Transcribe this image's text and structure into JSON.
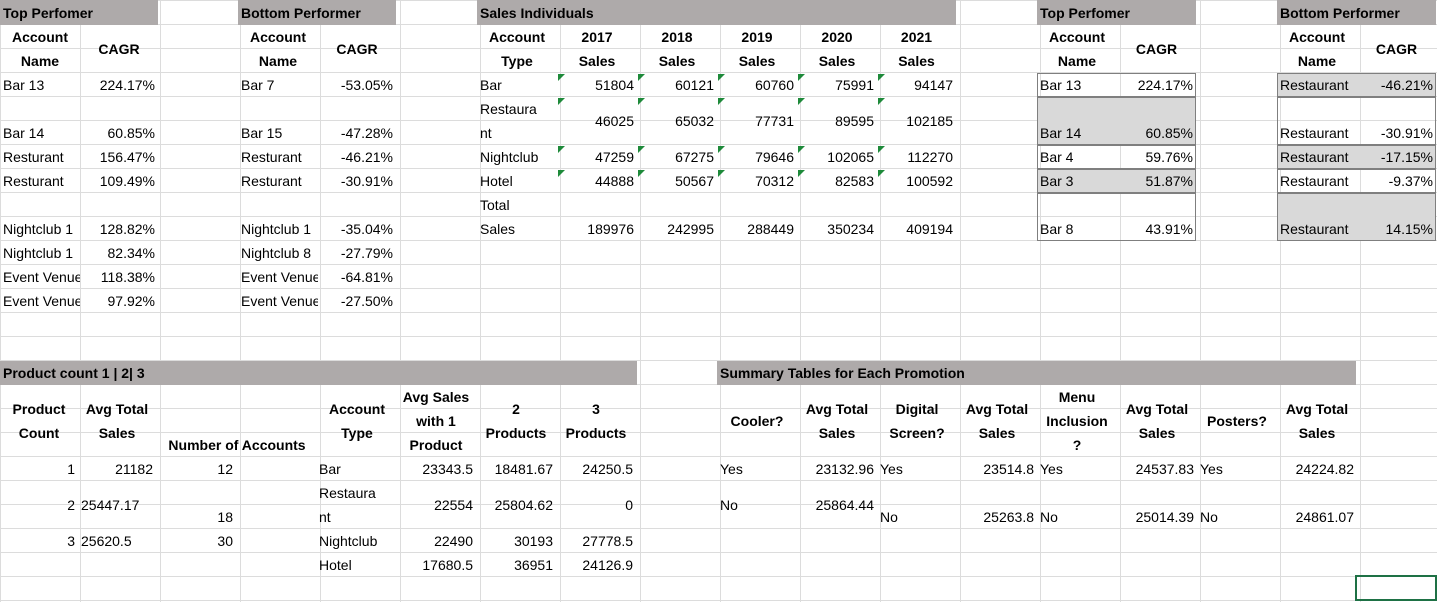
{
  "t1": {
    "title": "Top Perfomer",
    "h1a": "Account",
    "h1b": "Name",
    "h2": "CAGR",
    "rows": [
      [
        "Bar 13",
        "224.17%"
      ],
      [
        "Bar 14",
        "60.85%"
      ],
      [
        "Resturant",
        "156.47%"
      ],
      [
        "Resturant",
        "109.49%"
      ],
      [
        "Nightclub 1",
        "128.82%"
      ],
      [
        "Nightclub 1",
        "82.34%"
      ],
      [
        "Event Venue",
        "118.38%"
      ],
      [
        "Event Venue",
        "97.92%"
      ]
    ]
  },
  "t2": {
    "title": "Bottom Performer",
    "h1a": "Account",
    "h1b": "Name",
    "h2": "CAGR",
    "rows": [
      [
        "Bar 7",
        "-53.05%"
      ],
      [
        "Bar 15",
        "-47.28%"
      ],
      [
        "Resturant",
        "-46.21%"
      ],
      [
        "Resturant",
        "-30.91%"
      ],
      [
        "Nightclub 1",
        "-35.04%"
      ],
      [
        "Nightclub 8",
        "-27.79%"
      ],
      [
        "Event Venue",
        "-64.81%"
      ],
      [
        "Event Venue",
        "-27.50%"
      ]
    ]
  },
  "t3": {
    "title": "Sales Individuals",
    "headers": [
      [
        "Account",
        "Type"
      ],
      [
        "2017",
        "Sales"
      ],
      [
        "2018",
        "Sales"
      ],
      [
        "2019",
        "Sales"
      ],
      [
        "2020",
        "Sales"
      ],
      [
        "2021",
        "Sales"
      ]
    ],
    "rows": [
      {
        "name": "Bar",
        "vals": [
          "51804",
          "60121",
          "60760",
          "75991",
          "94147"
        ]
      },
      {
        "name": "Restaura",
        "name2": "nt",
        "vals": [
          "46025",
          "65032",
          "77731",
          "89595",
          "102185"
        ]
      },
      {
        "name": "Nightclub",
        "vals": [
          "47259",
          "67275",
          "79646",
          "102065",
          "112270"
        ]
      },
      {
        "name": "Hotel",
        "vals": [
          "44888",
          "50567",
          "70312",
          "82583",
          "100592"
        ]
      },
      {
        "name": "Total",
        "name2": "Sales",
        "vals": [
          "189976",
          "242995",
          "288449",
          "350234",
          "409194"
        ]
      }
    ]
  },
  "t4": {
    "title": "Top Perfomer",
    "h1a": "Account",
    "h1b": "Name",
    "h2": "CAGR",
    "rows": [
      [
        "Bar 13",
        "224.17%"
      ],
      [
        "Bar 14",
        "60.85%"
      ],
      [
        "Bar 4",
        "59.76%"
      ],
      [
        "Bar 3",
        "51.87%"
      ],
      [
        "Bar 8",
        "43.91%"
      ]
    ]
  },
  "t5": {
    "title": "Bottom Performer",
    "h1a": "Account",
    "h1b": "Name",
    "h2": "CAGR",
    "rows": [
      [
        "Restaurant",
        "-46.21%"
      ],
      [
        "Restaurant",
        "-30.91%"
      ],
      [
        "Restaurant",
        "-17.15%"
      ],
      [
        "Restaurant",
        "-9.37%"
      ],
      [
        "Restaurant",
        "14.15%"
      ]
    ]
  },
  "t6": {
    "title": "Product count 1 | 2| 3",
    "h": {
      "pc1": "Product",
      "pc2": "Count",
      "at1": "Avg Total",
      "at2": "Sales",
      "na": "Number of Accounts",
      "ac1": "Account",
      "ac2": "Type",
      "as1": "Avg Sales",
      "as2": "with 1",
      "as3": "Product",
      "p21": "2",
      "p22": "Products",
      "p31": "3",
      "p32": "Products"
    },
    "rows": [
      [
        "1",
        "21182",
        "12"
      ],
      [
        "2",
        "25447.17",
        "18"
      ],
      [
        "3",
        "25620.5",
        "30"
      ]
    ],
    "types": [
      {
        "name": "Bar",
        "vals": [
          "23343.5",
          "18481.67",
          "24250.5"
        ]
      },
      {
        "name": "Restaura",
        "name2": "nt",
        "vals": [
          "22554",
          "25804.62",
          "0"
        ]
      },
      {
        "name": "Nightclub",
        "vals": [
          "22490",
          "30193",
          "27778.5"
        ]
      },
      {
        "name": "Hotel",
        "vals": [
          "17680.5",
          "36951",
          "24126.9"
        ]
      }
    ]
  },
  "t7": {
    "title": "Summary Tables for Each Promotion",
    "h": {
      "cooler": "Cooler?",
      "avg1": "Avg Total",
      "avg2": "Sales",
      "dig1": "Digital",
      "dig2": "Screen?",
      "menu1": "Menu",
      "menu2": "Inclusion",
      "menu3": "?",
      "post": "Posters?"
    },
    "yes": {
      "c": "Yes",
      "c_v": "23132.96",
      "d": "Yes",
      "d_v": "23514.8",
      "m": "Yes",
      "m_v": "24537.83",
      "p": "Yes",
      "p_v": "24224.82"
    },
    "no": {
      "c": "No",
      "c_v": "25864.44",
      "d": "No",
      "d_v": "25263.8",
      "m": "No",
      "m_v": "25014.39",
      "p": "No",
      "p_v": "24861.07"
    }
  }
}
